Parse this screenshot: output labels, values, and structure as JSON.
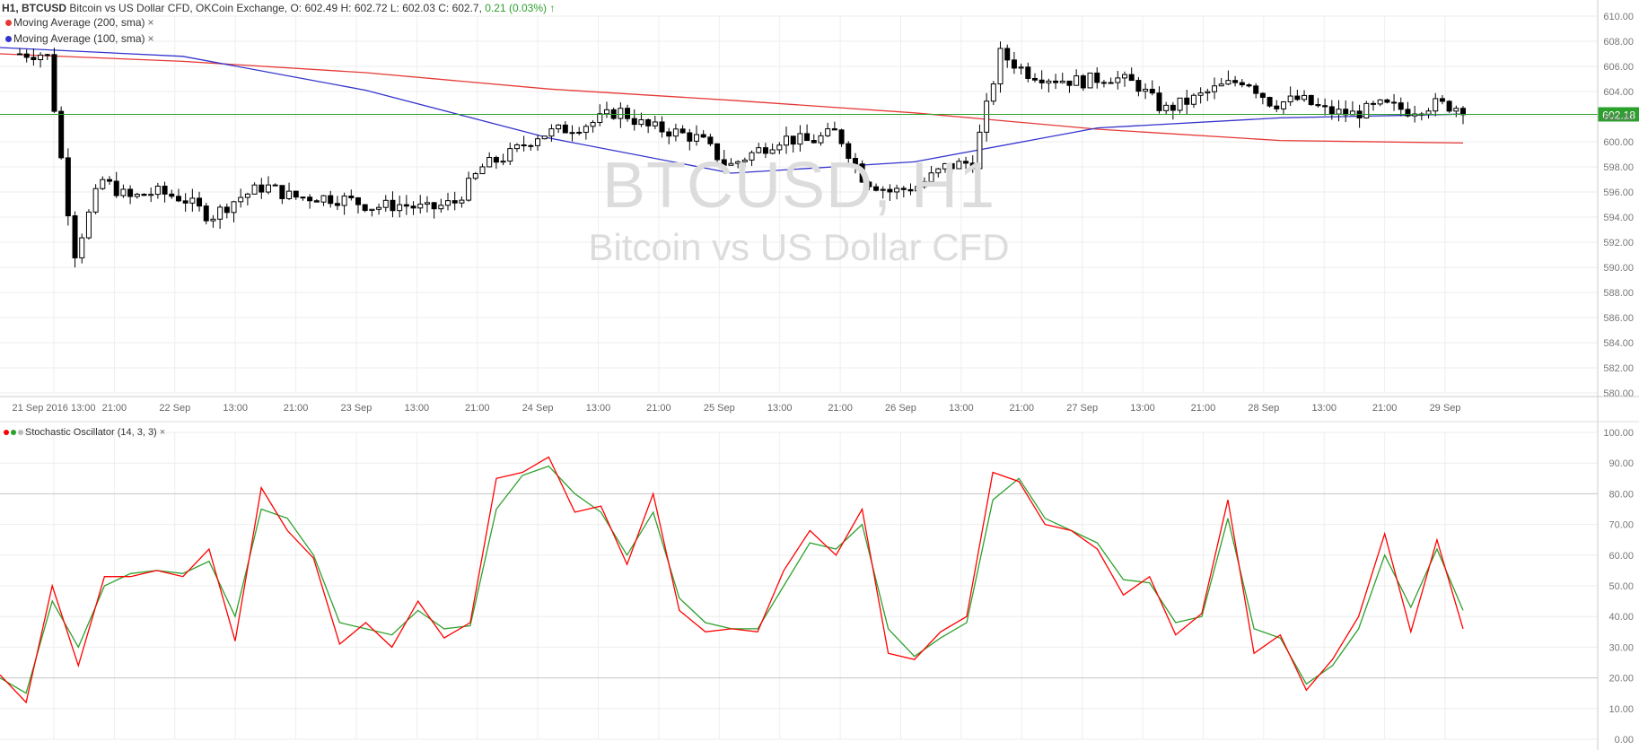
{
  "header": {
    "timeframe": "H1",
    "symbol": "BTCUSD",
    "description": "Bitcoin vs US Dollar CFD, OKCoin Exchange, O: 602.49 H: 602.72 L: 602.03 C: 602.7,",
    "change": "0.21 (0.03%)",
    "arrow": "↑"
  },
  "indicators": {
    "ma200_label": "Moving Average (200, sma)",
    "ma100_label": "Moving Average (100, sma)",
    "stoch_label": "Stochastic Oscillator (14, 3, 3)",
    "close_symbol": "×"
  },
  "watermark": {
    "line1": "BTCUSD, H1",
    "line2": "Bitcoin vs US Dollar CFD"
  },
  "colors": {
    "candle": "#000000",
    "ma200": "#e53935",
    "ma100": "#3333cc",
    "price_line": "#2ca02c",
    "stoch_k": "#ff0000",
    "stoch_d": "#2ca02c",
    "grid": "#eeeeee"
  },
  "chart_data": [
    {
      "type": "candlestick",
      "title": "BTCUSD, H1",
      "ylim": [
        580,
        610
      ],
      "y_ticks": [
        "580.00",
        "582.00",
        "584.00",
        "586.00",
        "588.00",
        "590.00",
        "592.00",
        "594.00",
        "596.00",
        "598.00",
        "600.00",
        "602.00",
        "604.00",
        "606.00",
        "608.00",
        "610.00"
      ],
      "x_ticks": [
        "21 Sep 2016 13:00",
        "21:00",
        "22 Sep",
        "13:00",
        "21:00",
        "23 Sep",
        "13:00",
        "21:00",
        "24 Sep",
        "13:00",
        "21:00",
        "25 Sep",
        "13:00",
        "21:00",
        "26 Sep",
        "13:00",
        "21:00",
        "27 Sep",
        "13:00",
        "21:00",
        "28 Sep",
        "13:00",
        "21:00",
        "29 Sep"
      ],
      "current_price_label": "602.18",
      "current_price": 602.18,
      "close_path": [
        607,
        607,
        591,
        597,
        595.5,
        596,
        595.5,
        594,
        595.5,
        596.5,
        595.6,
        595.6,
        595.4,
        594.8,
        595,
        594.6,
        595.2,
        598,
        599,
        600.5,
        601,
        601.5,
        602.5,
        601.2,
        600.8,
        600.2,
        598,
        599.2,
        600.3,
        600,
        600.8,
        597,
        596,
        596.5,
        598,
        598.4,
        607,
        605.5,
        605,
        604.8,
        605.2,
        604.6,
        602.5,
        603.3,
        604.3,
        605,
        603,
        603.4,
        602.4,
        602.2,
        602.9,
        602.5,
        603,
        602.7
      ],
      "series": [
        {
          "name": "Moving Average (200, sma)",
          "values": [
            607,
            606.4,
            605.5,
            604.2,
            603.3,
            602.3,
            601,
            600.1,
            599.9
          ]
        },
        {
          "name": "Moving Average (100, sma)",
          "values": [
            607.5,
            606.8,
            604.1,
            600.3,
            597.5,
            598.4,
            601.1,
            601.9,
            602.2
          ]
        }
      ]
    },
    {
      "type": "line",
      "title": "Stochastic Oscillator (14, 3, 3)",
      "ylim": [
        0,
        100
      ],
      "y_ticks": [
        "0.00",
        "10.00",
        "20.00",
        "30.00",
        "40.00",
        "50.00",
        "60.00",
        "70.00",
        "80.00",
        "90.00",
        "100.00"
      ],
      "levels": [
        20,
        80
      ],
      "series": [
        {
          "name": "%K",
          "values": [
            21,
            12,
            50,
            24,
            53,
            53,
            55,
            53,
            62,
            32,
            82,
            68,
            59,
            31,
            38,
            30,
            45,
            33,
            38,
            85,
            87,
            92,
            74,
            76,
            57,
            80,
            42,
            35,
            36,
            35,
            55,
            68,
            60,
            75,
            28,
            26,
            35,
            40,
            87,
            84,
            70,
            68,
            62,
            47,
            53,
            34,
            41,
            78,
            28,
            34,
            16,
            26,
            40,
            67,
            35,
            65,
            36
          ]
        },
        {
          "name": "%D",
          "values": [
            20,
            15,
            45,
            30,
            50,
            54,
            55,
            54,
            58,
            40,
            75,
            72,
            60,
            38,
            36,
            34,
            42,
            36,
            37,
            75,
            86,
            89,
            80,
            74,
            60,
            74,
            46,
            38,
            36,
            36,
            50,
            64,
            62,
            70,
            36,
            27,
            33,
            38,
            78,
            85,
            72,
            68,
            64,
            52,
            51,
            38,
            40,
            72,
            36,
            33,
            18,
            24,
            36,
            60,
            43,
            62,
            42
          ]
        }
      ]
    }
  ]
}
